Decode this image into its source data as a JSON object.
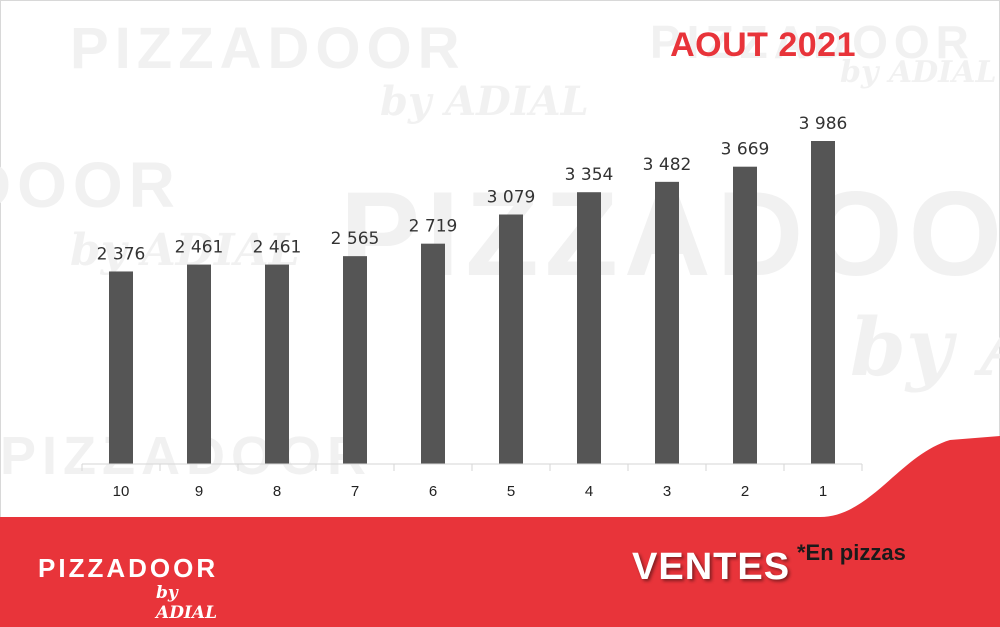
{
  "title": "AOUT 2021",
  "watermark": {
    "word": "PIZZADOOR",
    "by": "by ADIAL"
  },
  "footer": {
    "logo_word": "PIZZADOOR",
    "logo_by": "by ADIAL",
    "label": "VENTES",
    "unit_note": "*En pizzas"
  },
  "colors": {
    "accent": "#e8343a",
    "bar": "#555555",
    "footer_text": "#ffffff"
  },
  "chart_data": {
    "type": "bar",
    "title": "",
    "xlabel": "",
    "ylabel": "",
    "categories": [
      "10",
      "9",
      "8",
      "7",
      "6",
      "5",
      "4",
      "3",
      "2",
      "1"
    ],
    "values": [
      2376,
      2461,
      2461,
      2565,
      2719,
      3079,
      3354,
      3482,
      3669,
      3986
    ],
    "value_labels": [
      "2 376",
      "2 461",
      "2 461",
      "2 565",
      "2 719",
      "3 079",
      "3 354",
      "3 482",
      "3 669",
      "3 986"
    ],
    "ylim": [
      0,
      4500
    ],
    "grid": false,
    "legend": "none"
  }
}
